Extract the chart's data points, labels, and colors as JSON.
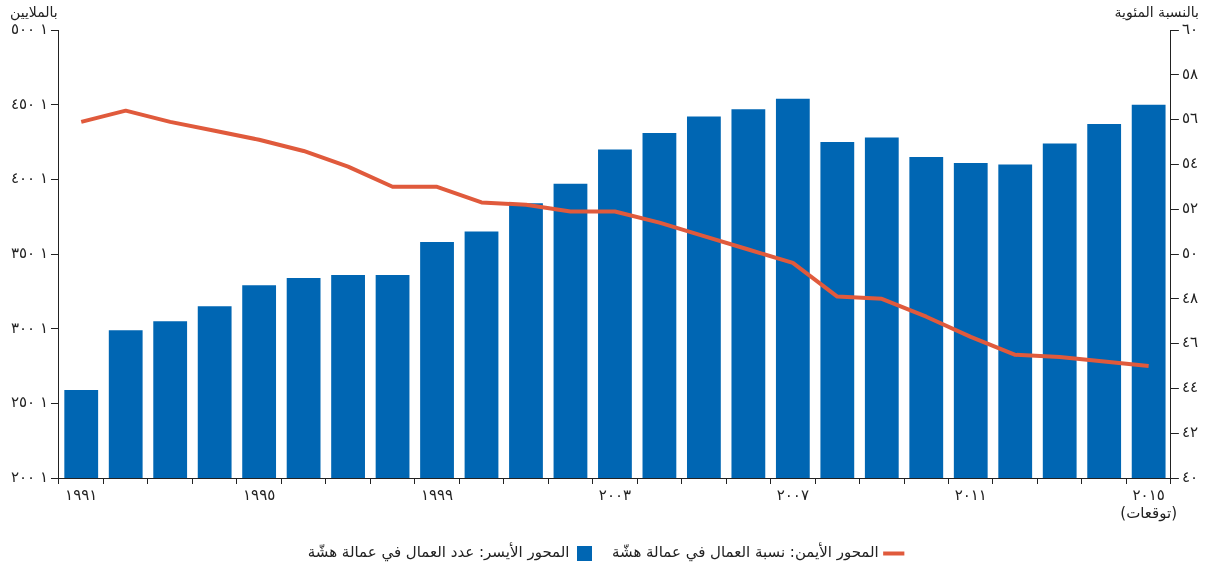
{
  "chart_data": {
    "type": "bar",
    "categories": [
      "١٩٩١",
      null,
      null,
      null,
      "١٩٩٥",
      null,
      null,
      null,
      "١٩٩٩",
      null,
      null,
      null,
      "٢٠٠٣",
      null,
      null,
      null,
      "٢٠٠٧",
      null,
      null,
      null,
      "٢٠١١",
      null,
      null,
      null,
      "٢٠١٥\n(توقعات)"
    ],
    "ylabel": "بالملايين",
    "y2label": "بالنسبة المئوية",
    "series": [
      {
        "name": "المحور الأيسر: عدد العمال في عمالة هشّة",
        "color": "#0066b3",
        "values": [
          1259,
          1299,
          1305,
          1315,
          1329,
          1334,
          1336,
          1336,
          1358,
          1365,
          1384,
          1397,
          1420,
          1431,
          1442,
          1447,
          1454,
          1425,
          1428,
          1415,
          1411,
          1410,
          1424,
          1437,
          1450
        ]
      },
      {
        "name": "المحور الأيمن: نسبة العمال في عمالة هشّة",
        "type": "line",
        "axis": "y2",
        "color": "#e05a3c",
        "values": [
          55.9,
          56.4,
          55.9,
          55.5,
          55.1,
          54.6,
          53.9,
          53.0,
          53.0,
          52.3,
          52.2,
          51.9,
          51.9,
          51.4,
          50.8,
          50.2,
          49.6,
          48.1,
          48.0,
          47.2,
          46.3,
          45.5,
          45.4,
          45.2,
          45.0
        ]
      }
    ],
    "ylim": [
      1200,
      1500
    ],
    "yticks": [
      {
        "value": 1200,
        "label": "١ ٢٠٠"
      },
      {
        "value": 1250,
        "label": "١ ٢٥٠"
      },
      {
        "value": 1300,
        "label": "١ ٣٠٠"
      },
      {
        "value": 1350,
        "label": "١ ٣٥٠"
      },
      {
        "value": 1400,
        "label": "١ ٤٠٠"
      },
      {
        "value": 1450,
        "label": "١ ٤٥٠"
      },
      {
        "value": 1500,
        "label": "١ ٥٠٠"
      }
    ],
    "y2lim": [
      40,
      60
    ],
    "y2ticks": [
      {
        "value": 40,
        "label": "٤٠"
      },
      {
        "value": 42,
        "label": "٤٢"
      },
      {
        "value": 44,
        "label": "٤٤"
      },
      {
        "value": 46,
        "label": "٤٦"
      },
      {
        "value": 48,
        "label": "٤٨"
      },
      {
        "value": 50,
        "label": "٥٠"
      },
      {
        "value": 52,
        "label": "٥٢"
      },
      {
        "value": 54,
        "label": "٥٤"
      },
      {
        "value": 56,
        "label": "٥٦"
      },
      {
        "value": 58,
        "label": "٥٨"
      },
      {
        "value": 60,
        "label": "٦٠"
      }
    ],
    "legend": "bottom",
    "marker": "none",
    "line_style": "solid"
  }
}
